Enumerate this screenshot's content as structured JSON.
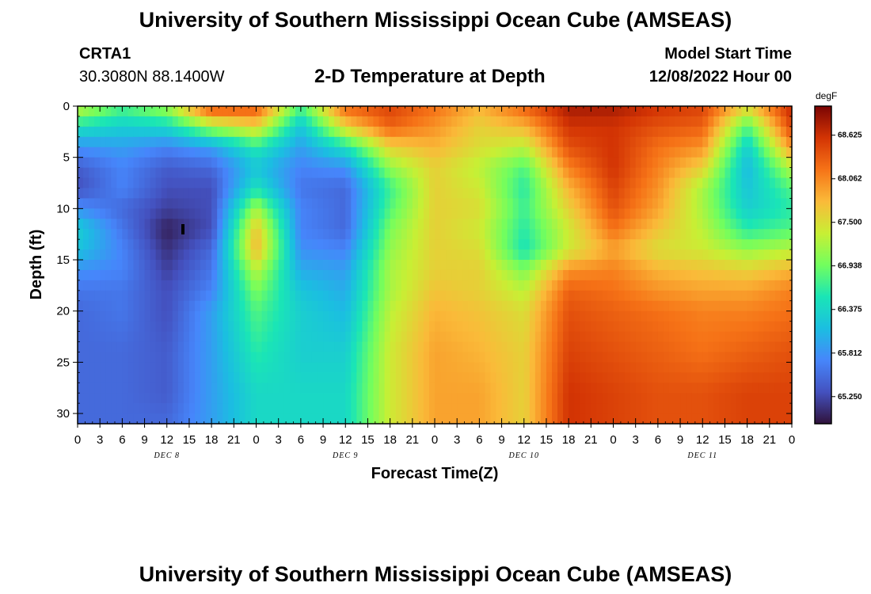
{
  "header": {
    "title": "University of Southern Mississippi Ocean Cube (AMSEAS)",
    "station": "CRTA1",
    "coords": "30.3080N  88.1400W",
    "subtitle": "2-D Temperature at Depth",
    "model_start_label": "Model Start Time",
    "model_start_value": "12/08/2022 Hour 00"
  },
  "footer": {
    "title": "University of Southern Mississippi Ocean Cube (AMSEAS)"
  },
  "colors": {
    "background": "#ffffff",
    "text": "#000000",
    "colormap": "turbo"
  },
  "chart_data": {
    "type": "heatmap",
    "title": "2-D Temperature at Depth",
    "xlabel": "Forecast Time(Z)",
    "ylabel": "Depth (ft)",
    "units": "degF",
    "x_tick_labels": [
      "0",
      "3",
      "6",
      "9",
      "12",
      "15",
      "18",
      "21",
      "0",
      "3",
      "6",
      "9",
      "12",
      "15",
      "18",
      "21",
      "0",
      "3",
      "6",
      "9",
      "12",
      "15",
      "18",
      "21",
      "0",
      "3",
      "6",
      "9",
      "12",
      "15",
      "18",
      "21",
      "0"
    ],
    "x_range_hours": [
      0,
      96
    ],
    "day_labels": [
      {
        "text": "DEC 8",
        "hour": 12
      },
      {
        "text": "DEC 9",
        "hour": 36
      },
      {
        "text": "DEC 10",
        "hour": 60
      },
      {
        "text": "DEC 11",
        "hour": 84
      }
    ],
    "y_ticks": [
      0,
      5,
      10,
      15,
      20,
      25,
      30
    ],
    "y_range_ft": [
      0,
      31
    ],
    "colorbar_ticks": [
      "68.625",
      "68.062",
      "67.500",
      "66.938",
      "66.375",
      "65.812",
      "65.250"
    ],
    "colorbar_range": [
      64.9,
      69.0
    ],
    "x_hours": [
      0,
      6,
      12,
      18,
      24,
      30,
      36,
      42,
      48,
      54,
      60,
      66,
      72,
      78,
      84,
      90,
      96
    ],
    "depths_ft": [
      0,
      2,
      4,
      6,
      8,
      10,
      12,
      14,
      16,
      18,
      20,
      24,
      28,
      31
    ],
    "values_degF": [
      [
        67.4,
        66.8,
        67.2,
        68.5,
        68.4,
        66.8,
        68.3,
        68.5,
        68.2,
        67.8,
        68.3,
        68.8,
        68.8,
        68.6,
        68.5,
        67.6,
        68.7
      ],
      [
        66.5,
        66.3,
        66.4,
        67.2,
        67.6,
        66.2,
        67.6,
        68.3,
        68.0,
        67.6,
        67.8,
        68.6,
        68.6,
        68.4,
        68.3,
        66.8,
        68.5
      ],
      [
        65.8,
        65.9,
        65.7,
        65.9,
        66.6,
        65.9,
        66.5,
        67.6,
        67.8,
        67.5,
        67.3,
        68.4,
        68.6,
        68.2,
        68.0,
        66.3,
        68.0
      ],
      [
        65.4,
        65.7,
        65.4,
        65.5,
        66.2,
        65.7,
        65.8,
        67.1,
        67.6,
        67.3,
        66.8,
        68.1,
        68.6,
        68.1,
        67.6,
        66.1,
        67.3
      ],
      [
        65.3,
        65.7,
        65.3,
        65.3,
        66.5,
        65.6,
        65.5,
        66.7,
        67.6,
        67.4,
        66.6,
        67.8,
        68.5,
        68.0,
        67.2,
        66.2,
        66.8
      ],
      [
        65.8,
        65.5,
        65.2,
        65.3,
        67.2,
        65.7,
        65.5,
        66.8,
        67.6,
        67.5,
        66.7,
        67.6,
        68.4,
        67.9,
        67.2,
        66.3,
        66.6
      ],
      [
        66.3,
        65.6,
        65.0,
        65.3,
        67.7,
        65.7,
        65.5,
        67.0,
        67.6,
        67.4,
        66.6,
        67.4,
        68.2,
        67.7,
        67.3,
        66.6,
        66.8
      ],
      [
        66.2,
        65.7,
        65.1,
        65.5,
        67.8,
        65.8,
        65.7,
        67.1,
        67.6,
        67.5,
        66.5,
        67.4,
        67.9,
        67.5,
        67.4,
        67.1,
        67.3
      ],
      [
        65.8,
        65.7,
        65.2,
        65.6,
        67.3,
        66.0,
        65.9,
        67.2,
        67.6,
        67.6,
        67.0,
        68.0,
        68.1,
        67.8,
        67.7,
        67.6,
        67.8
      ],
      [
        65.6,
        65.6,
        65.3,
        65.7,
        67.0,
        66.2,
        66.0,
        67.2,
        67.7,
        67.6,
        67.3,
        68.3,
        68.2,
        68.0,
        67.9,
        67.9,
        68.1
      ],
      [
        65.5,
        65.6,
        65.3,
        65.9,
        66.8,
        66.3,
        66.1,
        67.3,
        67.8,
        67.7,
        67.5,
        68.4,
        68.3,
        68.2,
        68.1,
        68.1,
        68.2
      ],
      [
        65.5,
        65.5,
        65.4,
        65.9,
        66.6,
        66.3,
        66.3,
        67.4,
        67.9,
        67.8,
        67.6,
        68.5,
        68.4,
        68.3,
        68.2,
        68.3,
        68.4
      ],
      [
        65.5,
        65.5,
        65.4,
        65.9,
        66.4,
        66.4,
        66.4,
        67.4,
        67.9,
        67.9,
        67.6,
        68.6,
        68.5,
        68.4,
        68.4,
        68.5,
        68.5
      ],
      [
        65.5,
        65.5,
        65.5,
        65.9,
        66.4,
        66.4,
        66.4,
        67.4,
        67.9,
        67.9,
        67.6,
        68.6,
        68.5,
        68.4,
        68.4,
        68.5,
        68.5
      ]
    ]
  }
}
